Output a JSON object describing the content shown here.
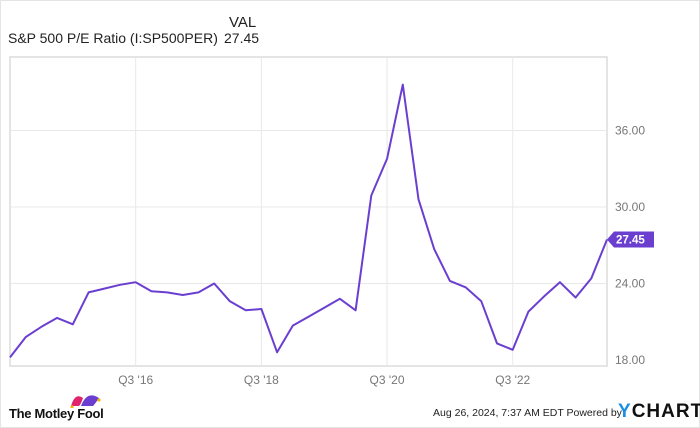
{
  "header": {
    "col_label": "VAL",
    "series_name": "S&P 500 P/E Ratio (I:SP500PER)",
    "series_value": "27.45"
  },
  "footer": {
    "brand_left": "The Motley Fool",
    "timestamp": "Aug 26, 2024, 7:37 AM EDT",
    "powered_by": "Powered by",
    "brand_right_y": "Y",
    "brand_right_rest": "CHARTS"
  },
  "colors": {
    "line": "#6a3fd0",
    "badge": "#6a3fd0",
    "grid": "#e8e8e8",
    "ycharts_y": "#1a8fe3"
  },
  "chart_data": {
    "type": "line",
    "title": "S&P 500 P/E Ratio (I:SP500PER)",
    "xlabel": "",
    "ylabel": "",
    "ylim": [
      17.8,
      41.5
    ],
    "yticks": [
      "18.00",
      "24.00",
      "30.00",
      "36.00"
    ],
    "xticks": [
      "Q3 '16",
      "Q3 '18",
      "Q3 '20",
      "Q3 '22"
    ],
    "grid": true,
    "legend_position": "top-left",
    "last_value_label": "27.45",
    "series": [
      {
        "name": "S&P 500 P/E Ratio",
        "values": [
          18.2,
          19.8,
          20.6,
          21.3,
          20.8,
          23.3,
          23.6,
          23.9,
          24.1,
          23.4,
          23.3,
          23.1,
          23.3,
          24.0,
          22.6,
          21.9,
          22.0,
          18.6,
          20.7,
          21.4,
          22.1,
          22.8,
          21.9,
          30.9,
          33.8,
          39.6,
          30.6,
          26.7,
          24.2,
          23.7,
          22.6,
          19.3,
          18.8,
          21.8,
          23.0,
          24.1,
          22.9,
          24.4,
          27.45
        ]
      }
    ]
  }
}
